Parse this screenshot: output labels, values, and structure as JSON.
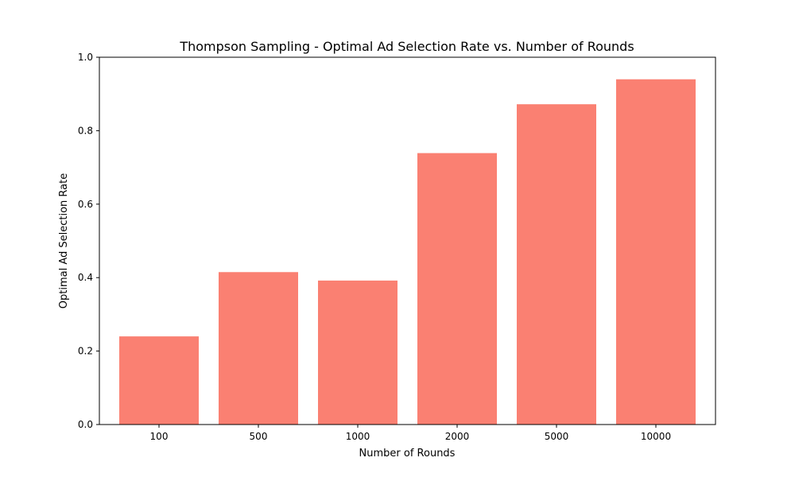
{
  "chart_data": {
    "type": "bar",
    "title": "Thompson Sampling - Optimal Ad Selection Rate vs. Number of Rounds",
    "xlabel": "Number of Rounds",
    "ylabel": "Optimal Ad Selection Rate",
    "categories": [
      "100",
      "500",
      "1000",
      "2000",
      "5000",
      "10000"
    ],
    "values": [
      0.24,
      0.415,
      0.392,
      0.739,
      0.872,
      0.94
    ],
    "ylim": [
      0,
      1.0
    ],
    "yticks": [
      0.0,
      0.2,
      0.4,
      0.6,
      0.8,
      1.0
    ],
    "ytick_labels": [
      "0.0",
      "0.2",
      "0.4",
      "0.6",
      "0.8",
      "1.0"
    ],
    "bar_color": "#fa8072",
    "grid": false
  }
}
